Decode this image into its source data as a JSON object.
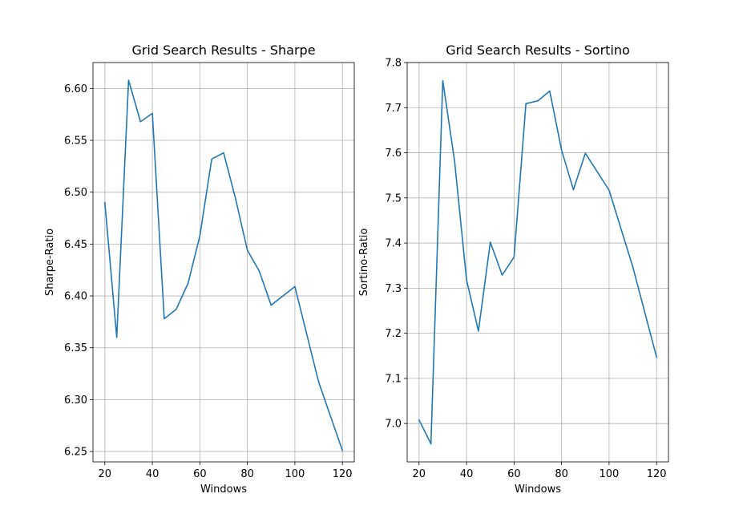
{
  "chart_data": [
    {
      "type": "line",
      "title": "Grid Search Results - Sharpe",
      "xlabel": "Windows",
      "ylabel": "Sharpe-Ratio",
      "xlim": [
        15,
        125
      ],
      "ylim": [
        6.24,
        6.625
      ],
      "xticks": [
        20,
        40,
        60,
        80,
        100,
        120
      ],
      "yticks": [
        6.25,
        6.3,
        6.35,
        6.4,
        6.45,
        6.5,
        6.55,
        6.6
      ],
      "ytick_labels": [
        "6.25",
        "6.30",
        "6.35",
        "6.40",
        "6.45",
        "6.50",
        "6.55",
        "6.60"
      ],
      "grid": true,
      "series": [
        {
          "color": "#1f77b4",
          "x": [
            20,
            25,
            30,
            35,
            40,
            45,
            50,
            55,
            60,
            65,
            70,
            75,
            80,
            85,
            90,
            100,
            110,
            120
          ],
          "y": [
            6.49,
            6.36,
            6.608,
            6.568,
            6.576,
            6.378,
            6.387,
            6.412,
            6.458,
            6.532,
            6.538,
            6.494,
            6.444,
            6.424,
            6.391,
            6.409,
            6.317,
            6.251
          ]
        }
      ]
    },
    {
      "type": "line",
      "title": "Grid Search Results - Sortino",
      "xlabel": "Windows",
      "ylabel": "Sortino-Ratio",
      "xlim": [
        15,
        125
      ],
      "ylim": [
        6.915,
        7.8
      ],
      "xticks": [
        20,
        40,
        60,
        80,
        100,
        120
      ],
      "yticks": [
        7.0,
        7.1,
        7.2,
        7.3,
        7.4,
        7.5,
        7.6,
        7.7,
        7.8
      ],
      "ytick_labels": [
        "7.0",
        "7.1",
        "7.2",
        "7.3",
        "7.4",
        "7.5",
        "7.6",
        "7.7",
        "7.8"
      ],
      "grid": true,
      "series": [
        {
          "color": "#1f77b4",
          "x": [
            20,
            25,
            30,
            35,
            40,
            45,
            50,
            55,
            60,
            65,
            70,
            75,
            80,
            85,
            90,
            100,
            110,
            120
          ],
          "y": [
            7.008,
            6.955,
            7.76,
            7.58,
            7.318,
            7.205,
            7.402,
            7.329,
            7.369,
            7.709,
            7.715,
            7.737,
            7.606,
            7.518,
            7.599,
            7.517,
            7.347,
            7.147
          ]
        }
      ]
    }
  ]
}
